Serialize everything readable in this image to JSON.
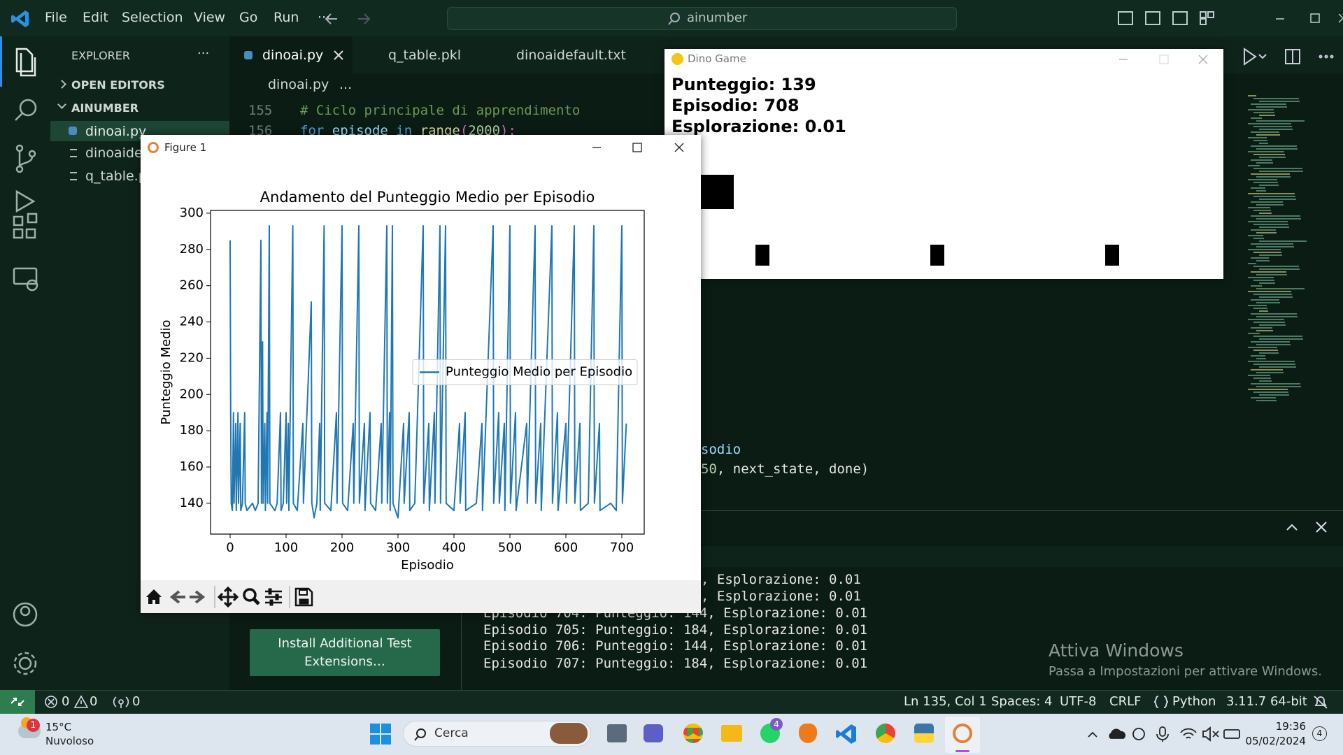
{
  "titlebar": {
    "menu": [
      "File",
      "Edit",
      "Selection",
      "View",
      "Go",
      "Run",
      "···"
    ],
    "search": "ainumber"
  },
  "tabs": [
    "dinoai.py",
    "q_table.pkl",
    "dinoaidefault.txt"
  ],
  "breadcrumb": [
    "dinoai.py",
    "..."
  ],
  "explorer": {
    "title": "EXPLORER",
    "more": "···",
    "sections": [
      "OPEN EDITORS",
      "AINUMBER"
    ],
    "files": [
      "dinoai.py",
      "dinoaidefault.txt",
      "q_table.pkl"
    ]
  },
  "install_button": "Install Additional Test Extensions…",
  "code": [
    {
      "number": "155",
      "tokens": [
        "# Ciclo principale di apprendimento"
      ]
    },
    {
      "number": "156",
      "tokens": [
        "for",
        " episode ",
        "in",
        " ",
        "range",
        "(",
        "2000",
        "):"
      ]
    }
  ],
  "code_fragments": [
    [
      "sodio"
    ],
    [
      "50",
      ", next_state, done)"
    ]
  ],
  "terminal": [
    ", Esplorazione: 0.01",
    ", Esplorazione: 0.01",
    "Episodio 704: Punteggio: 144, Esplorazione: 0.01",
    "Episodio 705: Punteggio: 184, Esplorazione: 0.01",
    "Episodio 706: Punteggio: 144, Esplorazione: 0.01",
    "Episodio 707: Punteggio: 184, Esplorazione: 0.01"
  ],
  "dino_game": {
    "title": "Dino Game",
    "score": "Punteggio: 139",
    "episode": "Episodio: 708",
    "exploration": "Esplorazione: 0.01"
  },
  "figure": {
    "title": "Figure 1"
  },
  "chart_data": {
    "type": "line",
    "title": "Andamento del Punteggio Medio per Episodio",
    "x_label": "Episodio",
    "y_label": "Punteggio Medio",
    "x": [
      0,
      1,
      2,
      4,
      6,
      7,
      10,
      11,
      14,
      15,
      18,
      19,
      22,
      26,
      27,
      30,
      40,
      45,
      50,
      55,
      56,
      58,
      59,
      62,
      63,
      66,
      67,
      70,
      71,
      80,
      84,
      90,
      91,
      95,
      100,
      101,
      104,
      105,
      112,
      113,
      120,
      130,
      131,
      145,
      146,
      150,
      155,
      160,
      161,
      168,
      169,
      180,
      190,
      191,
      200,
      201,
      210,
      220,
      221,
      230,
      231,
      240,
      241,
      250,
      251,
      260,
      270,
      271,
      280,
      281,
      285,
      286,
      290,
      291,
      300,
      310,
      311,
      320,
      321,
      330,
      345,
      346,
      355,
      356,
      365,
      366,
      375,
      376,
      385,
      386,
      400,
      410,
      411,
      420,
      421,
      440,
      450,
      451,
      470,
      471,
      480,
      481,
      490,
      491,
      500,
      501,
      510,
      511,
      530,
      531,
      545,
      546,
      555,
      556,
      575,
      576,
      585,
      586,
      600,
      601,
      615,
      616,
      625,
      626,
      640,
      650,
      651,
      660,
      661,
      680,
      690,
      700,
      701,
      708
    ],
    "series": [
      {
        "name": "Punteggio Medio per Episodio",
        "color": "#1f77b4",
        "values": [
          285,
          190,
          140,
          136,
          190,
          140,
          184,
          136,
          190,
          140,
          184,
          136,
          140,
          190,
          140,
          136,
          140,
          136,
          140,
          285,
          140,
          229,
          140,
          184,
          136,
          190,
          140,
          293,
          140,
          136,
          140,
          190,
          136,
          140,
          190,
          140,
          184,
          136,
          293,
          140,
          136,
          184,
          140,
          251,
          140,
          132,
          140,
          184,
          136,
          293,
          140,
          136,
          190,
          140,
          293,
          140,
          136,
          184,
          140,
          293,
          140,
          184,
          136,
          190,
          140,
          136,
          184,
          140,
          293,
          140,
          190,
          136,
          293,
          140,
          132,
          184,
          140,
          190,
          136,
          140,
          293,
          140,
          184,
          136,
          190,
          140,
          293,
          140,
          293,
          140,
          136,
          184,
          140,
          190,
          136,
          140,
          184,
          136,
          293,
          140,
          190,
          140,
          184,
          136,
          293,
          140,
          190,
          136,
          184,
          140,
          293,
          140,
          184,
          136,
          293,
          140,
          190,
          136,
          184,
          140,
          293,
          140,
          184,
          136,
          140,
          293,
          140,
          184,
          136,
          140,
          136,
          293,
          140,
          184
        ]
      }
    ],
    "xlim": [
      -35,
      740
    ],
    "ylim": [
      123,
      301.5
    ],
    "xticks": [
      0,
      100,
      200,
      300,
      400,
      500,
      600,
      700
    ],
    "yticks": [
      140,
      160,
      180,
      200,
      220,
      240,
      260,
      280,
      300
    ],
    "legend": "center right"
  },
  "statusbar": {
    "errors": "0",
    "warnings": "0",
    "ports": "0",
    "position": "Ln 135, Col 1",
    "spaces": "Spaces: 4",
    "encoding": "UTF-8",
    "eol": "CRLF",
    "language": "Python",
    "interpreter": "3.11.7 64-bit"
  },
  "watermark": {
    "title": "Attiva Windows",
    "text": "Passa a Impostazioni per attivare Windows."
  },
  "taskbar": {
    "weather_badge": "1",
    "temp": "15°C",
    "weather": "Nuvoloso",
    "search": "Cerca",
    "whatsapp_badge": "4",
    "time": "19:36",
    "date": "05/02/2024",
    "notifications": "4"
  }
}
